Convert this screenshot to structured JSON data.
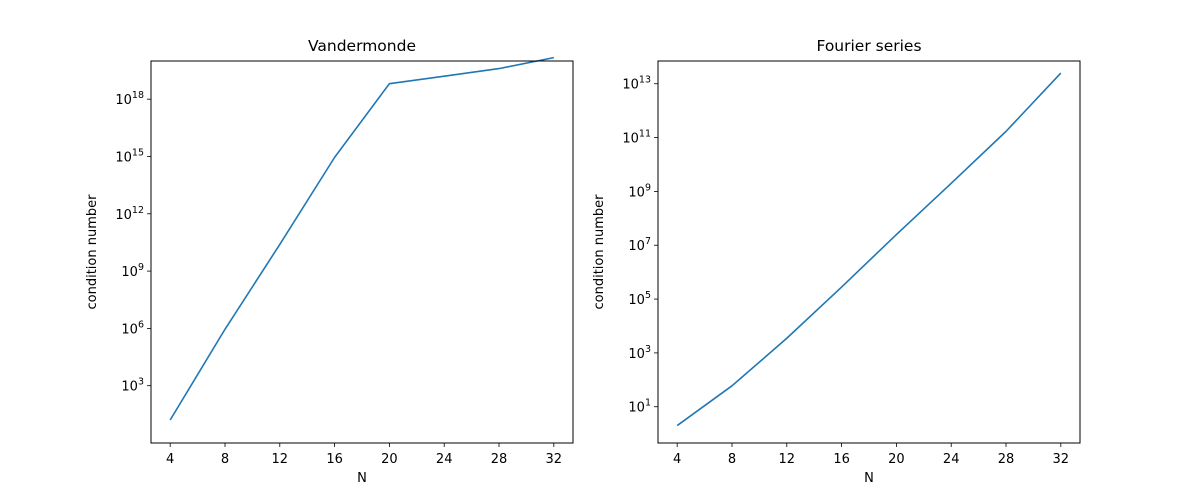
{
  "chart_data": [
    {
      "type": "line",
      "title": "Vandermonde",
      "xlabel": "N",
      "ylabel": "condition number",
      "yscale": "log",
      "x_ticks": [
        4,
        8,
        12,
        16,
        20,
        24,
        28,
        32
      ],
      "x_tick_labels": [
        "4",
        "8",
        "12",
        "16",
        "20",
        "24",
        "28",
        "32"
      ],
      "xlim": [
        2.6,
        33.4
      ],
      "y_tick_exponents": [
        3,
        6,
        9,
        12,
        15,
        18
      ],
      "y_tick_labels": [
        "10^3",
        "10^6",
        "10^9",
        "10^12",
        "10^15",
        "10^18"
      ],
      "ylim": [
        1.0,
        1e+20
      ],
      "grid": false,
      "series": [
        {
          "color": "#1f77b4",
          "x": [
            4,
            8,
            12,
            16,
            20,
            24,
            28,
            32
          ],
          "y": [
            16.0,
            900000.0,
            25000000000.0,
            900000000000000.0,
            6.5e+18,
            1.6e+19,
            4e+19,
            1.5e+20
          ]
        }
      ]
    },
    {
      "type": "line",
      "title": "Fourier series",
      "xlabel": "N",
      "ylabel": "condition number",
      "yscale": "log",
      "x_ticks": [
        4,
        8,
        12,
        16,
        20,
        24,
        28,
        32
      ],
      "x_tick_labels": [
        "4",
        "8",
        "12",
        "16",
        "20",
        "24",
        "28",
        "32"
      ],
      "xlim": [
        2.6,
        33.4
      ],
      "y_tick_exponents": [
        1,
        3,
        5,
        7,
        9,
        11,
        13
      ],
      "y_tick_labels": [
        "10^1",
        "10^3",
        "10^5",
        "10^7",
        "10^9",
        "10^11",
        "10^13"
      ],
      "ylim": [
        0.45,
        70000000000000.0
      ],
      "grid": false,
      "series": [
        {
          "color": "#1f77b4",
          "x": [
            4,
            8,
            12,
            16,
            20,
            24,
            28,
            32
          ],
          "y": [
            2,
            60,
            3500.0,
            280000.0,
            25000000.0,
            2000000000.0,
            170000000000.0,
            25000000000000.0
          ]
        }
      ]
    }
  ]
}
